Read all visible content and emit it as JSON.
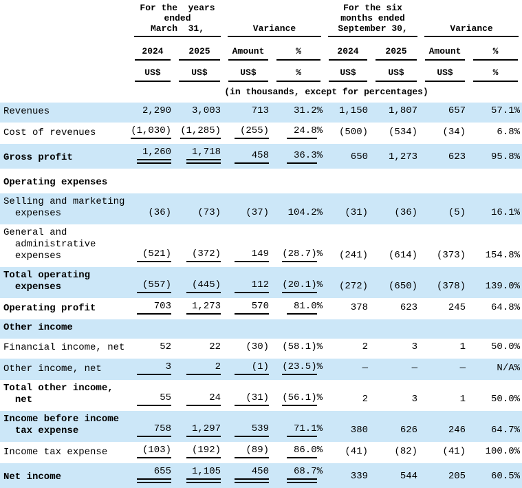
{
  "colors": {
    "stripe": "#cce7f8",
    "text": "#000000",
    "rule": "#000000"
  },
  "header": {
    "groups": [
      {
        "title": "For the  years\nended\nMarch  31,"
      },
      {
        "title": "Variance"
      },
      {
        "title": "For the six\nmonths ended\nSeptember 30,"
      },
      {
        "title": "Variance"
      }
    ],
    "columns": [
      "2024",
      "2025",
      "Amount",
      "%",
      "2024",
      "2025",
      "Amount",
      "%"
    ],
    "units": [
      "US$",
      "US$",
      "US$",
      "%",
      "US$",
      "US$",
      "US$",
      "%"
    ],
    "note": "(in thousands, except for percentages)"
  },
  "rows": [
    {
      "label": "Revenues",
      "bold": false,
      "shaded": true,
      "cells": [
        "2,290",
        "3,003",
        "713",
        "31.2%",
        "1,150",
        "1,807",
        "657",
        "57.1%"
      ],
      "u": "nnnn"
    },
    {
      "label": "Cost of revenues",
      "bold": false,
      "shaded": false,
      "cells": [
        "(1,030)",
        "(1,285)",
        "(255)",
        "24.8%",
        "(500)",
        "(534)",
        "(34)",
        "6.8%"
      ],
      "u": "ssss"
    },
    {
      "label": "Gross profit",
      "bold": true,
      "shaded": true,
      "cells": [
        "1,260",
        "1,718",
        "458",
        "36.3%",
        "650",
        "1,273",
        "623",
        "95.8%"
      ],
      "u": "ddss"
    },
    {
      "spacer": true
    },
    {
      "label": "Operating expenses",
      "bold": true,
      "shaded": false,
      "cells": [
        "",
        "",
        "",
        "",
        "",
        "",
        "",
        ""
      ],
      "u": "nnnn"
    },
    {
      "label": "Selling and marketing\n  expenses",
      "bold": false,
      "shaded": true,
      "cells": [
        "(36)",
        "(73)",
        "(37)",
        "104.2%",
        "(31)",
        "(36)",
        "(5)",
        "16.1%"
      ],
      "u": "nnnn"
    },
    {
      "label": "General and\n  administrative\n  expenses",
      "bold": false,
      "shaded": false,
      "cells": [
        "(521)",
        "(372)",
        "149",
        "(28.7)%",
        "(241)",
        "(614)",
        "(373)",
        "154.8%"
      ],
      "u": "ssss"
    },
    {
      "label": "Total operating\n  expenses",
      "bold": true,
      "shaded": true,
      "cells": [
        "(557)",
        "(445)",
        "112",
        "(20.1)%",
        "(272)",
        "(650)",
        "(378)",
        "139.0%"
      ],
      "u": "ssss"
    },
    {
      "label": "Operating profit",
      "bold": true,
      "shaded": false,
      "cells": [
        "703",
        "1,273",
        "570",
        "81.0%",
        "378",
        "623",
        "245",
        "64.8%"
      ],
      "u": "ssss"
    },
    {
      "label": "Other income",
      "bold": true,
      "shaded": true,
      "cells": [
        "",
        "",
        "",
        "",
        "",
        "",
        "",
        ""
      ],
      "u": "nnnn"
    },
    {
      "label": "Financial income, net",
      "bold": false,
      "shaded": false,
      "cells": [
        "52",
        "22",
        "(30)",
        "(58.1)%",
        "2",
        "3",
        "1",
        "50.0%"
      ],
      "u": "nnnn"
    },
    {
      "label": "Other income, net",
      "bold": false,
      "shaded": true,
      "cells": [
        "3",
        "2",
        "(1)",
        "(23.5)%",
        "—",
        "—",
        "—",
        "N/A%"
      ],
      "u": "ssss"
    },
    {
      "label": "Total other income,\n  net",
      "bold": true,
      "shaded": false,
      "cells": [
        "55",
        "24",
        "(31)",
        "(56.1)%",
        "2",
        "3",
        "1",
        "50.0%"
      ],
      "u": "ssss"
    },
    {
      "label": "Income before income\n  tax expense",
      "bold": true,
      "shaded": true,
      "cells": [
        "758",
        "1,297",
        "539",
        "71.1%",
        "380",
        "626",
        "246",
        "64.7%"
      ],
      "u": "ssss"
    },
    {
      "label": "Income tax expense",
      "bold": false,
      "shaded": false,
      "cells": [
        "(103)",
        "(192)",
        "(89)",
        "86.0%",
        "(41)",
        "(82)",
        "(41)",
        "100.0%"
      ],
      "u": "ssss"
    },
    {
      "label": "Net income",
      "bold": true,
      "shaded": true,
      "cells": [
        "655",
        "1,105",
        "450",
        "68.7%",
        "339",
        "544",
        "205",
        "60.5%"
      ],
      "u": "dddd"
    }
  ]
}
